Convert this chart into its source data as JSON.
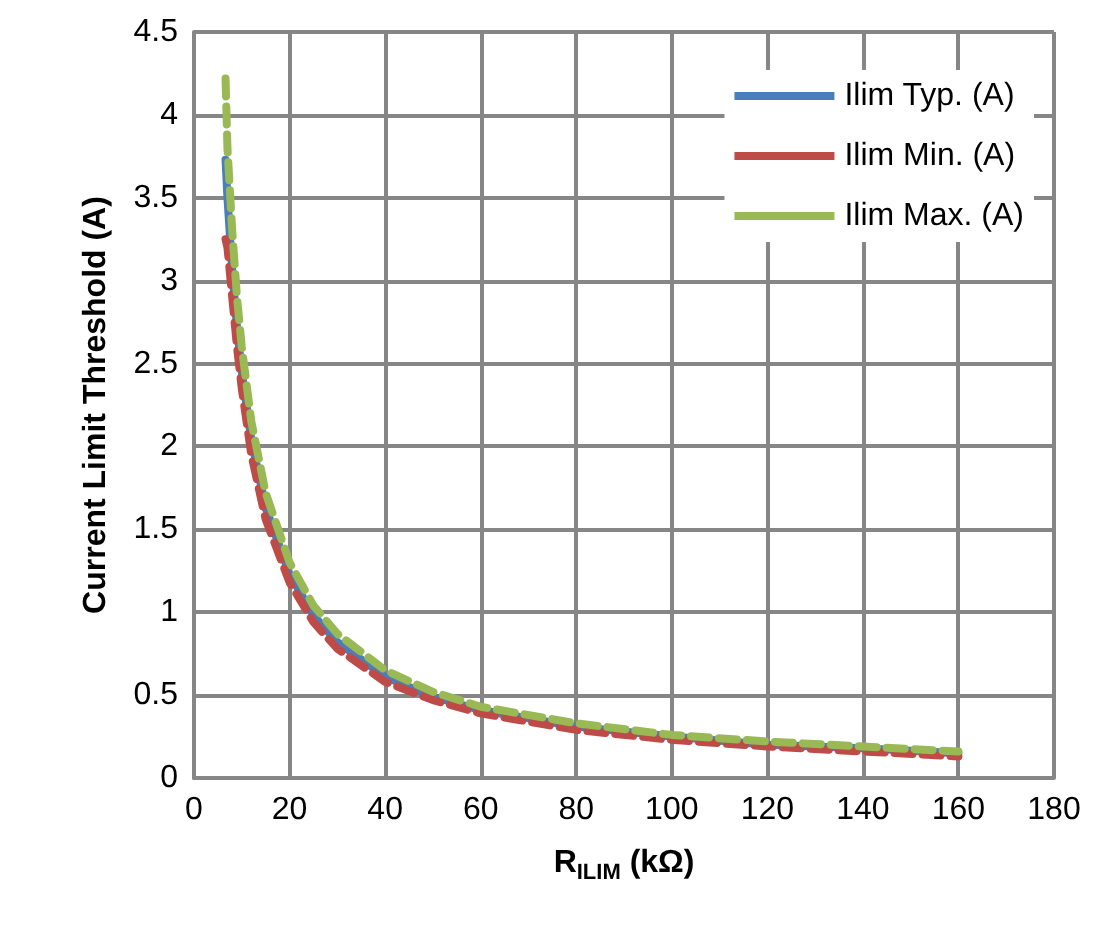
{
  "chart_data": {
    "type": "line",
    "xlabel": "R$_{ILIM}$ (kΩ)",
    "ylabel": "Current Limit Threshold (A)",
    "x": [
      6.6,
      7,
      8,
      9,
      10,
      12,
      15,
      20,
      25,
      30,
      40,
      50,
      60,
      80,
      100,
      120,
      140,
      160
    ],
    "series": [
      {
        "name": "Ilim Typ. (A)",
        "color": "#4a7ebb",
        "line_style": "solid",
        "values": [
          3.73,
          3.5,
          3.06,
          2.72,
          2.45,
          2.04,
          1.63,
          1.23,
          0.98,
          0.82,
          0.61,
          0.49,
          0.41,
          0.31,
          0.25,
          0.2,
          0.18,
          0.15
        ]
      },
      {
        "name": "Ilim Min. (A)",
        "color": "#be4b48",
        "line_style": "dashed",
        "values": [
          3.25,
          3.2,
          2.9,
          2.6,
          2.35,
          1.95,
          1.56,
          1.18,
          0.94,
          0.78,
          0.58,
          0.47,
          0.39,
          0.29,
          0.23,
          0.19,
          0.16,
          0.13
        ]
      },
      {
        "name": "Ilim Max. (A)",
        "color": "#98b954",
        "line_style": "dashed",
        "values": [
          4.22,
          3.8,
          3.3,
          2.9,
          2.6,
          2.15,
          1.72,
          1.3,
          1.04,
          0.87,
          0.65,
          0.52,
          0.43,
          0.33,
          0.26,
          0.22,
          0.19,
          0.16
        ]
      }
    ],
    "xlim": [
      0,
      180
    ],
    "xticks": [
      0,
      20,
      40,
      60,
      80,
      100,
      120,
      140,
      160,
      180
    ],
    "ylim": [
      0,
      4.5
    ],
    "yticks": [
      0,
      0.5,
      1,
      1.5,
      2,
      2.5,
      3,
      3.5,
      4,
      4.5
    ],
    "grid": true,
    "legend": "top right",
    "marker": "none"
  }
}
